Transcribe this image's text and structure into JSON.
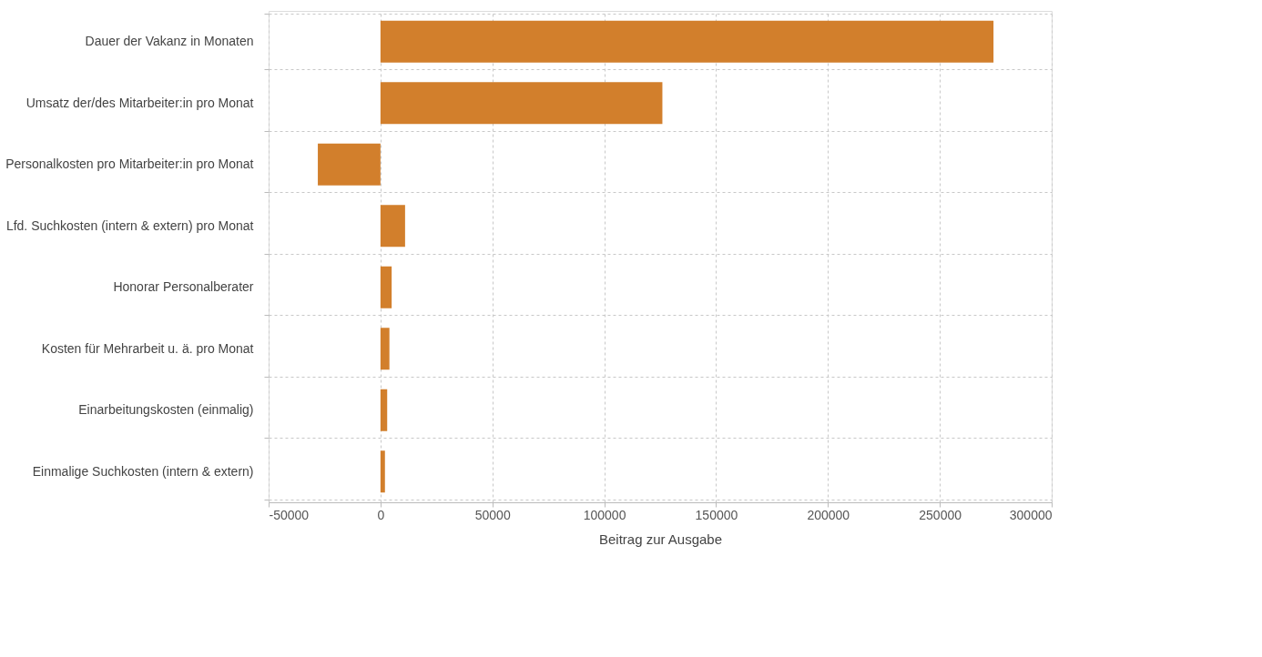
{
  "chart_data": {
    "type": "bar",
    "orientation": "horizontal",
    "xlabel": "Beitrag zur Ausgabe",
    "categories": [
      "Dauer der Vakanz in Monaten",
      "Umsatz der/des Mitarbeiter:in pro Monat",
      "Personalkosten pro Mitarbeiter:in pro Monat",
      "Lfd. Suchkosten (intern & extern) pro Monat",
      "Honorar Personalberater",
      "Kosten für Mehrarbeit u. ä. pro Monat",
      "Einarbeitungskosten (einmalig)",
      "Einmalige Suchkosten (intern & extern)"
    ],
    "values": [
      274000,
      126000,
      -28000,
      11000,
      5000,
      4000,
      3000,
      2000
    ],
    "color": "#d27f2c",
    "xlim": [
      -50000,
      300000
    ],
    "xticks": [
      -50000,
      0,
      50000,
      100000,
      150000,
      200000,
      250000,
      300000
    ],
    "grid": true
  }
}
